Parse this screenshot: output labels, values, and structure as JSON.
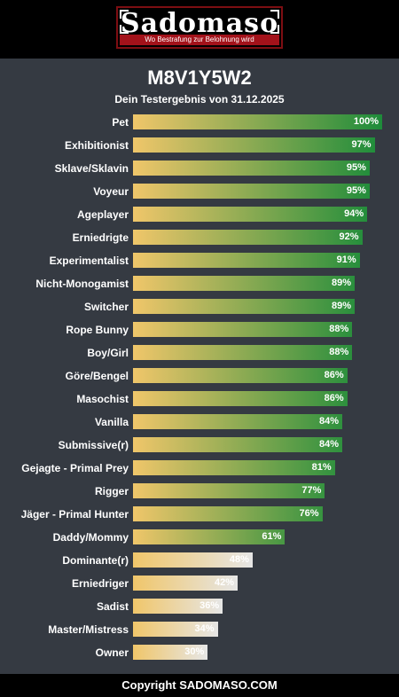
{
  "logo": {
    "name": "Sadomaso",
    "tagline": "Wo Bestrafung zur Belohnung wird"
  },
  "result": {
    "code": "M8V1Y5W2",
    "subtitle": "Dein Testergebnis von 31.12.2025"
  },
  "colors": {
    "bar_start": "#f0c66a",
    "high_end": "#1e8c3a",
    "low_end": "#e6e6e6",
    "background": "#353a42"
  },
  "chart_data": {
    "type": "bar",
    "orientation": "horizontal",
    "categories": [
      "Pet",
      "Exhibitionist",
      "Sklave/Sklavin",
      "Voyeur",
      "Ageplayer",
      "Erniedrigte",
      "Experimentalist",
      "Nicht-Monogamist",
      "Switcher",
      "Rope Bunny",
      "Boy/Girl",
      "Göre/Bengel",
      "Masochist",
      "Vanilla",
      "Submissive(r)",
      "Gejagte - Primal Prey",
      "Rigger",
      "Jäger - Primal Hunter",
      "Daddy/Mommy",
      "Dominante(r)",
      "Erniedriger",
      "Sadist",
      "Master/Mistress",
      "Owner"
    ],
    "values": [
      100,
      97,
      95,
      95,
      94,
      92,
      91,
      89,
      89,
      88,
      88,
      86,
      86,
      84,
      84,
      81,
      77,
      76,
      61,
      48,
      42,
      36,
      34,
      30
    ],
    "labels": [
      "100%",
      "97%",
      "95%",
      "95%",
      "94%",
      "92%",
      "91%",
      "89%",
      "89%",
      "88%",
      "88%",
      "86%",
      "86%",
      "84%",
      "84%",
      "81%",
      "77%",
      "76%",
      "61%",
      "48%",
      "42%",
      "36%",
      "34%",
      "30%"
    ],
    "xlim": [
      0,
      100
    ],
    "grid": false,
    "legend": "none"
  },
  "footer": {
    "copyright": "Copyright SADOMASO.COM"
  }
}
